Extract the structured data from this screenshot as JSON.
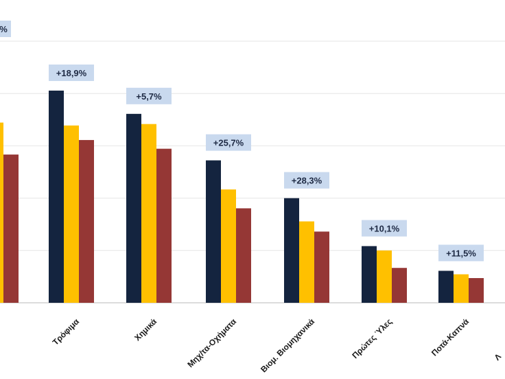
{
  "chart_data": {
    "type": "bar",
    "categories": [
      "",
      "Τρόφιμα",
      "Χημικά",
      "Μηχ/τα-Οχήματα",
      "Βιομ. Βιομηχανικά",
      "Πρώτες Ύλες",
      "Ποτά-Καπνά",
      ""
    ],
    "series": [
      {
        "values": [
          null,
          7.3,
          6.5,
          4.9,
          3.6,
          1.95,
          1.1,
          null
        ],
        "color": "#14243f"
      },
      {
        "values": [
          6.2,
          6.1,
          6.15,
          3.9,
          2.8,
          1.8,
          0.98,
          null
        ],
        "color": "#ffc000"
      },
      {
        "values": [
          5.1,
          5.6,
          5.3,
          3.25,
          2.45,
          1.2,
          0.85,
          null
        ],
        "color": "#953735"
      }
    ],
    "annotations": [
      "%",
      "+18,9%",
      "+5,7%",
      "+25,7%",
      "+28,3%",
      "+10,1%",
      "+11,5%",
      ""
    ],
    "ylim": [
      0,
      9
    ],
    "grid": true,
    "gridlines": [
      0,
      1.8,
      3.6,
      5.4,
      7.2,
      9.0
    ],
    "badge_color": "#c9d9ee",
    "gridline_color": "#e6e6e6",
    "axis_color": "#d0d0d0",
    "last_label_partial": "Λ"
  }
}
